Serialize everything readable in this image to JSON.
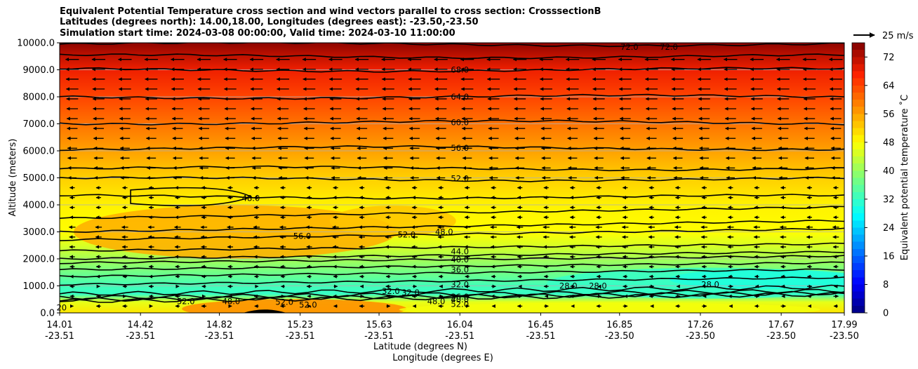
{
  "chart_data": {
    "type": "heatmap",
    "title_lines": [
      "Equivalent Potential Temperature cross section and wind vectors parallel to cross section: CrosssectionB",
      "Latitudes (degrees north): 14.00,18.00, Longitudes (degrees east): -23.50,-23.50",
      "Simulation start time: 2024-03-08 00:00:00, Valid time: 2024-03-10 11:00:00"
    ],
    "ylabel": "Altitude (meters)",
    "xlabel_lat": "Latitude (degrees N)",
    "xlabel_lon": "Longitude (degrees E)",
    "ylim": [
      0,
      10000
    ],
    "y_ticks": [
      0,
      1000,
      2000,
      3000,
      4000,
      5000,
      6000,
      7000,
      8000,
      9000,
      10000
    ],
    "y_tick_labels": [
      "0.0",
      "1000.0",
      "2000.0",
      "3000.0",
      "4000.0",
      "5000.0",
      "6000.0",
      "7000.0",
      "8000.0",
      "9000.0",
      "10000.0"
    ],
    "x_ticks": [
      {
        "lat": "14.01",
        "lon": "-23.51"
      },
      {
        "lat": "14.42",
        "lon": "-23.51"
      },
      {
        "lat": "14.82",
        "lon": "-23.51"
      },
      {
        "lat": "15.23",
        "lon": "-23.51"
      },
      {
        "lat": "15.63",
        "lon": "-23.51"
      },
      {
        "lat": "16.04",
        "lon": "-23.51"
      },
      {
        "lat": "16.45",
        "lon": "-23.51"
      },
      {
        "lat": "16.85",
        "lon": "-23.50"
      },
      {
        "lat": "17.26",
        "lon": "-23.50"
      },
      {
        "lat": "17.67",
        "lon": "-23.50"
      },
      {
        "lat": "17.99",
        "lon": "-23.50"
      }
    ],
    "xlim": [
      14.01,
      17.99
    ],
    "colorbar": {
      "label": "Equivalent potential temperature ˚C",
      "range": [
        0,
        76
      ],
      "ticks": [
        0,
        8,
        16,
        24,
        32,
        40,
        48,
        56,
        64,
        72
      ],
      "tick_labels": [
        "0",
        "8",
        "16",
        "24",
        "32",
        "40",
        "48",
        "56",
        "64",
        "72"
      ]
    },
    "quiver_key": {
      "label": "25 m/s",
      "value": 25
    },
    "contour_levels": [
      28,
      32,
      36,
      40,
      44,
      48,
      52,
      56,
      60,
      64,
      68,
      72
    ],
    "contour_labels": [
      {
        "text": "72.0",
        "lat": 16.9,
        "alt": 9850
      },
      {
        "text": "72.0",
        "lat": 17.1,
        "alt": 9850
      },
      {
        "text": "68.0",
        "lat": 16.04,
        "alt": 9000
      },
      {
        "text": "64.0",
        "lat": 16.04,
        "alt": 8000
      },
      {
        "text": "60.0",
        "lat": 16.04,
        "alt": 7050
      },
      {
        "text": "56.0",
        "lat": 16.04,
        "alt": 6100
      },
      {
        "text": "52.0",
        "lat": 16.04,
        "alt": 4970
      },
      {
        "text": "48.0",
        "lat": 14.98,
        "alt": 4250
      },
      {
        "text": "56.0",
        "lat": 15.24,
        "alt": 2850
      },
      {
        "text": "52.0",
        "lat": 15.77,
        "alt": 2900
      },
      {
        "text": "48.0",
        "lat": 15.96,
        "alt": 3000
      },
      {
        "text": "44.0",
        "lat": 16.04,
        "alt": 2270
      },
      {
        "text": "40.0",
        "lat": 16.04,
        "alt": 1970
      },
      {
        "text": "36.0",
        "lat": 16.04,
        "alt": 1600
      },
      {
        "text": "32.0",
        "lat": 16.04,
        "alt": 1050
      },
      {
        "text": "28.0",
        "lat": 16.59,
        "alt": 1000
      },
      {
        "text": "28.0",
        "lat": 16.74,
        "alt": 1000
      },
      {
        "text": "28.0",
        "lat": 17.31,
        "alt": 1050
      },
      {
        "text": "32.0",
        "lat": 15.69,
        "alt": 800
      },
      {
        "text": "32.0",
        "lat": 15.79,
        "alt": 750
      },
      {
        "text": "48.0",
        "lat": 14.88,
        "alt": 430
      },
      {
        "text": "52.0",
        "lat": 14.65,
        "alt": 430
      },
      {
        "text": "52.0",
        "lat": 15.15,
        "alt": 400
      },
      {
        "text": "52.0",
        "lat": 15.27,
        "alt": 300
      },
      {
        "text": "48.0",
        "lat": 15.92,
        "alt": 430
      },
      {
        "text": "52.0",
        "lat": 16.04,
        "alt": 320
      },
      {
        "text": "40.0",
        "lat": 16.04,
        "alt": 500
      },
      {
        "text": "36.0",
        "lat": 16.04,
        "alt": 600
      },
      {
        "text": "20",
        "lat": 14.02,
        "alt": 200
      }
    ],
    "layers": [
      {
        "alt": 0,
        "value": 50
      },
      {
        "alt": 400,
        "value": 46
      },
      {
        "alt": 700,
        "value": 32
      },
      {
        "alt": 1000,
        "value": 33
      },
      {
        "alt": 1500,
        "value": 37
      },
      {
        "alt": 2000,
        "value": 41
      },
      {
        "alt": 2500,
        "value": 45
      },
      {
        "alt": 3000,
        "value": 48
      },
      {
        "alt": 4000,
        "value": 49
      },
      {
        "alt": 5000,
        "value": 52
      },
      {
        "alt": 6000,
        "value": 56
      },
      {
        "alt": 7000,
        "value": 60
      },
      {
        "alt": 8000,
        "value": 64
      },
      {
        "alt": 9000,
        "value": 68
      },
      {
        "alt": 9600,
        "value": 72
      },
      {
        "alt": 10000,
        "value": 75
      }
    ]
  }
}
